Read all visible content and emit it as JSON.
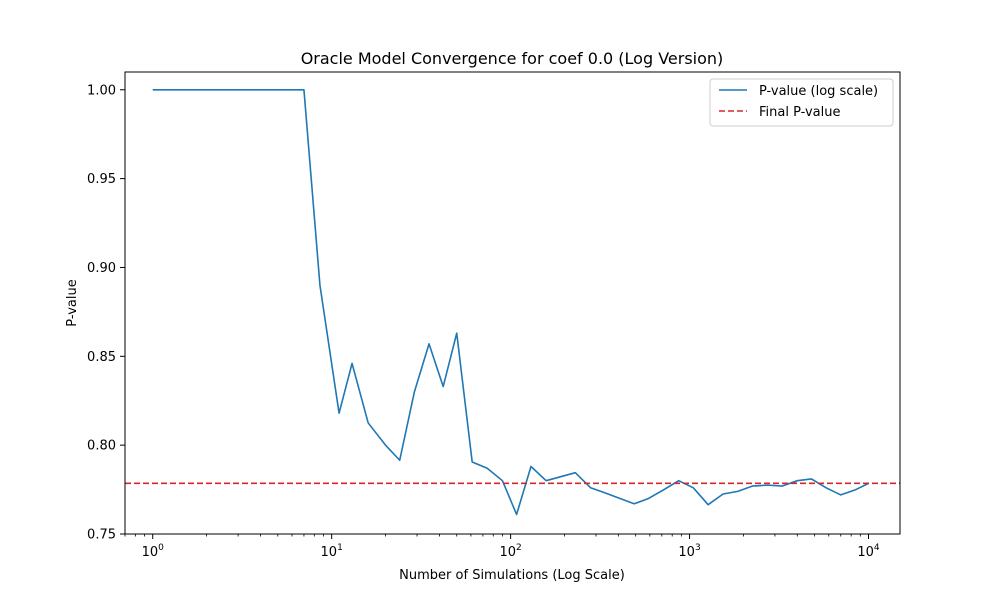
{
  "chart_data": {
    "type": "line",
    "title": "Oracle Model Convergence for coef 0.0 (Log Version)",
    "xlabel": "Number of Simulations (Log Scale)",
    "ylabel": "P-value",
    "x_scale": "log",
    "xlim": [
      0.7,
      15000
    ],
    "ylim": [
      0.75,
      1.01
    ],
    "x_ticks": [
      {
        "value": 1,
        "base": "10",
        "exp": "0"
      },
      {
        "value": 10,
        "base": "10",
        "exp": "1"
      },
      {
        "value": 100,
        "base": "10",
        "exp": "2"
      },
      {
        "value": 1000,
        "base": "10",
        "exp": "3"
      },
      {
        "value": 10000,
        "base": "10",
        "exp": "4"
      }
    ],
    "y_ticks": [
      {
        "value": 0.75,
        "label": "0.75"
      },
      {
        "value": 0.8,
        "label": "0.80"
      },
      {
        "value": 0.85,
        "label": "0.85"
      },
      {
        "value": 0.9,
        "label": "0.90"
      },
      {
        "value": 0.95,
        "label": "0.95"
      },
      {
        "value": 1.0,
        "label": "1.00"
      }
    ],
    "grid": false,
    "legend": "top-right",
    "series": [
      {
        "name": "P-value (log scale)",
        "color": "#1f77b4",
        "style": "solid",
        "x": [
          1,
          7,
          8.6,
          11,
          13,
          16,
          20,
          24,
          29,
          35,
          42,
          50,
          61,
          74,
          90,
          108,
          130,
          158,
          230,
          280,
          340,
          490,
          590,
          720,
          870,
          1050,
          1270,
          1540,
          1860,
          2250,
          2730,
          3300,
          4000,
          4800,
          5800,
          7000,
          8500,
          10000
        ],
        "y": [
          1.0,
          1.0,
          0.89,
          0.818,
          0.846,
          0.8125,
          0.8,
          0.7915,
          0.83,
          0.857,
          0.833,
          0.863,
          0.7905,
          0.787,
          0.78,
          0.761,
          0.788,
          0.78,
          0.7845,
          0.776,
          0.773,
          0.767,
          0.77,
          0.775,
          0.78,
          0.776,
          0.7665,
          0.7725,
          0.774,
          0.777,
          0.7775,
          0.777,
          0.78,
          0.781,
          0.776,
          0.772,
          0.775,
          0.7785
        ]
      },
      {
        "name": "Final P-value",
        "color": "#d62728",
        "style": "dashed",
        "y_constant": 0.7785
      }
    ]
  }
}
